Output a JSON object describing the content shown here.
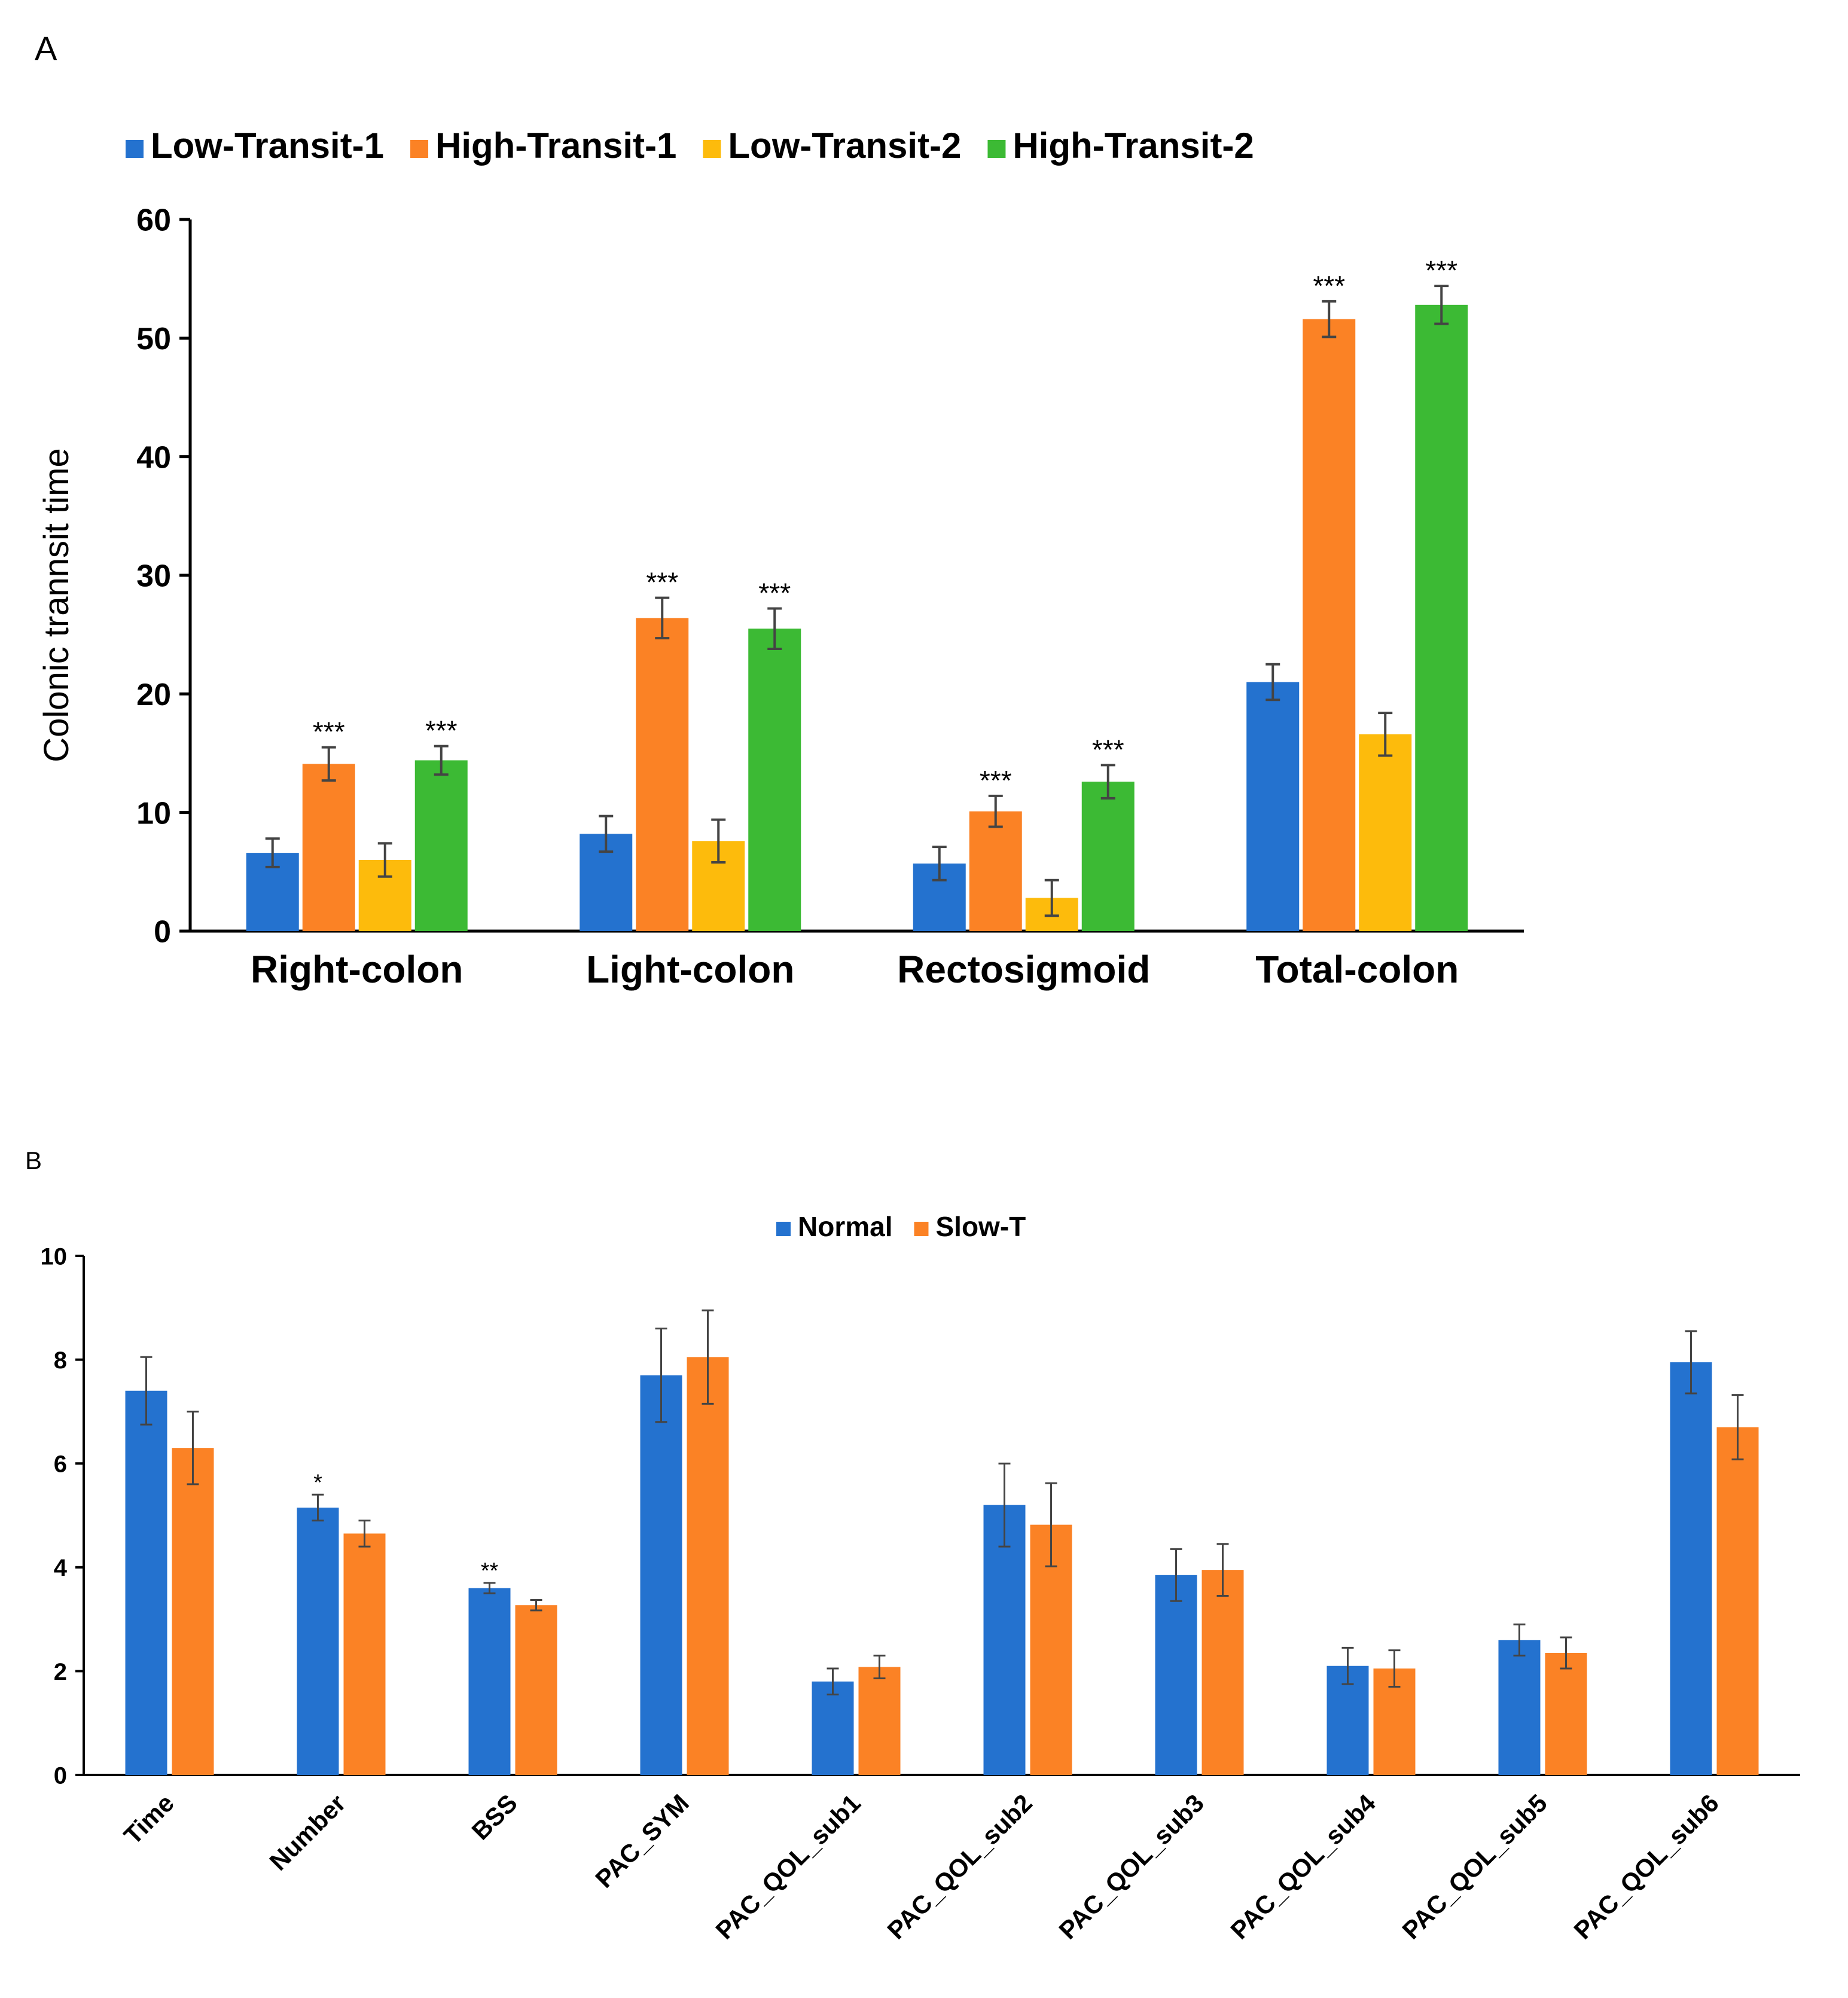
{
  "figure": {
    "panel_a_label": "A",
    "panel_b_label": "B"
  },
  "colors": {
    "blue": "#2472cf",
    "orange": "#fb8225",
    "yellow": "#fdbb0c",
    "green": "#3cba34",
    "axis": "#000000",
    "error_bar": "#444444"
  },
  "chart_data": [
    {
      "type": "bar",
      "title": "",
      "xlabel": "",
      "ylabel": "Colonic trannsit time",
      "ylim": [
        0,
        60
      ],
      "yticks": [
        0,
        10,
        20,
        30,
        40,
        50,
        60
      ],
      "grid": false,
      "legend_position": "top",
      "categories": [
        "Right-colon",
        "Light-colon",
        "Rectosigmoid",
        "Total-colon"
      ],
      "series": [
        {
          "name": "Low-Transit-1",
          "color": "#2472cf",
          "values": [
            6.6,
            8.2,
            5.7,
            21.0
          ],
          "errors": [
            1.2,
            1.5,
            1.4,
            1.5
          ],
          "annotations": [
            "",
            "",
            "",
            ""
          ]
        },
        {
          "name": "High-Transit-1",
          "color": "#fb8225",
          "values": [
            14.1,
            26.4,
            10.1,
            51.6
          ],
          "errors": [
            1.4,
            1.7,
            1.3,
            1.5
          ],
          "annotations": [
            "***",
            "***",
            "***",
            "***"
          ]
        },
        {
          "name": "Low-Transit-2",
          "color": "#fdbb0c",
          "values": [
            6.0,
            7.6,
            2.8,
            16.6
          ],
          "errors": [
            1.4,
            1.8,
            1.5,
            1.8
          ],
          "annotations": [
            "",
            "",
            "",
            ""
          ]
        },
        {
          "name": "High-Transit-2",
          "color": "#3cba34",
          "values": [
            14.4,
            25.5,
            12.6,
            52.8
          ],
          "errors": [
            1.2,
            1.7,
            1.4,
            1.6
          ],
          "annotations": [
            "***",
            "***",
            "***",
            "***"
          ]
        }
      ]
    },
    {
      "type": "bar",
      "title": "",
      "xlabel": "",
      "ylabel": "",
      "ylim": [
        0,
        10
      ],
      "yticks": [
        0,
        2,
        4,
        6,
        8,
        10
      ],
      "grid": false,
      "legend_position": "top",
      "categories": [
        "Time",
        "Number",
        "BSS",
        "PAC_SYM",
        "PAC_QOL_sub1",
        "PAC_QOL_sub2",
        "PAC_QOL_sub3",
        "PAC_QOL_sub4",
        "PAC_QOL_sub5",
        "PAC_QOL_sub6"
      ],
      "series": [
        {
          "name": "Normal",
          "color": "#2472cf",
          "values": [
            7.4,
            5.15,
            3.6,
            7.7,
            1.8,
            5.2,
            3.85,
            2.1,
            2.6,
            7.95
          ],
          "errors": [
            0.65,
            0.25,
            0.1,
            0.9,
            0.25,
            0.8,
            0.5,
            0.35,
            0.3,
            0.6
          ],
          "annotations": [
            "",
            "*",
            "**",
            "",
            "",
            "",
            "",
            "",
            "",
            ""
          ]
        },
        {
          "name": "Slow-T",
          "color": "#fb8225",
          "values": [
            6.3,
            4.65,
            3.27,
            8.05,
            2.08,
            4.82,
            3.95,
            2.05,
            2.35,
            6.7
          ],
          "errors": [
            0.7,
            0.25,
            0.1,
            0.9,
            0.22,
            0.8,
            0.5,
            0.35,
            0.3,
            0.62
          ],
          "annotations": [
            "",
            "",
            "",
            "",
            "",
            "",
            "",
            "",
            "",
            ""
          ]
        }
      ]
    }
  ]
}
